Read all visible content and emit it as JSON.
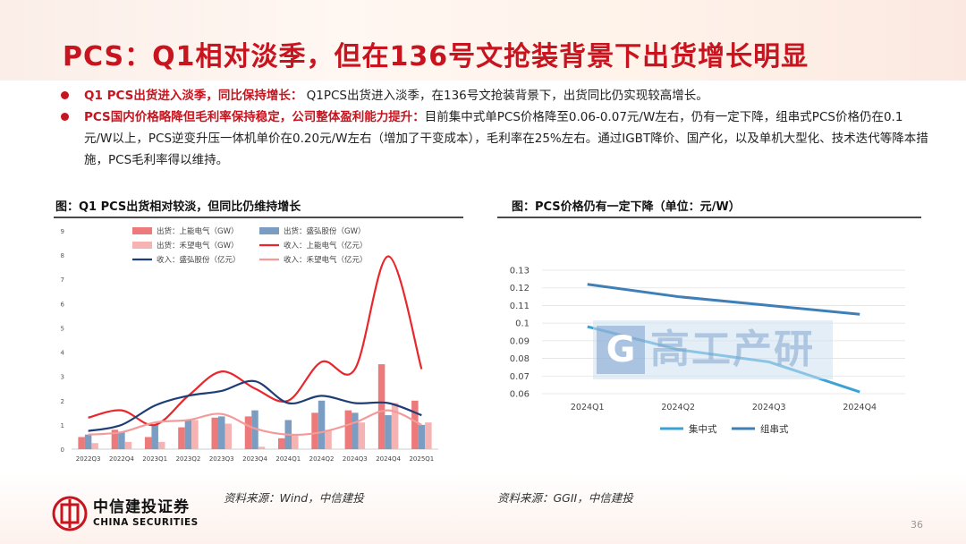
{
  "title": "PCS：Q1相对淡季，但在136号文抢装背景下出货增长明显",
  "bullets": [
    {
      "lead": "Q1 PCS出货进入淡季，同比保持增长：",
      "text": " Q1PCS出货进入淡季，在136号文抢装背景下，出货同比仍实现较高增长。"
    },
    {
      "lead": "PCS国内价格略降但毛利率保持稳定，公司整体盈利能力提升：",
      "text": "目前集中式单PCS价格降至0.06-0.07元/W左右，仍有一定下降，组串式PCS价格仍在0.1元/W以上，PCS逆变升压一体机单价在0.20元/W左右（增加了干变成本），毛利率在25%左右。通过IGBT降价、国产化，以及单机大型化、技术迭代等降本措施，PCS毛利率得以维持。"
    }
  ],
  "left_panel": {
    "title": "图：Q1 PCS出货相对较淡，但同比仍维持增长",
    "source": "资料来源：Wind，中信建投"
  },
  "right_panel": {
    "title": "图：PCS价格仍有一定下降（单位：元/W）",
    "source": "资料来源：GGII，中信建投"
  },
  "watermark": {
    "letter": "G",
    "text": "高工产研"
  },
  "logo": {
    "cn": "中信建投证券",
    "en": "CHINA SECURITIES"
  },
  "page_number": "36",
  "colors": {
    "brand_red": "#c8141e",
    "bar_red": "#ec7a7a",
    "bar_pink": "#f6b3b3",
    "bar_blue": "#7b9dc2",
    "line_red": "#e8262b",
    "line_navy": "#1f3e78",
    "line_pink": "#f39a9a",
    "price_central": "#3ba2d6",
    "price_string": "#3e7fb8"
  },
  "chart_data": [
    {
      "type": "bar",
      "title": "图：Q1 PCS出货相对较淡，但同比仍维持增长",
      "categories": [
        "2022Q3",
        "2022Q4",
        "2023Q1",
        "2023Q2",
        "2023Q3",
        "2023Q4",
        "2024Q1",
        "2024Q2",
        "2024Q3",
        "2024Q4",
        "2025Q1"
      ],
      "ylim": [
        0,
        9
      ],
      "yticks": [
        "0",
        "1",
        "2",
        "3",
        "4",
        "5",
        "6",
        "7",
        "8",
        "9"
      ],
      "bar_series": [
        {
          "name": "出货：上能电气（GW）",
          "color": "#ec7a7a",
          "values": [
            0.5,
            0.8,
            0.5,
            0.9,
            1.3,
            1.35,
            0.45,
            1.5,
            1.6,
            3.5,
            2.0
          ]
        },
        {
          "name": "出货：盛弘股份（GW）",
          "color": "#7b9dc2",
          "values": [
            0.6,
            0.7,
            1.0,
            1.2,
            1.35,
            1.6,
            1.2,
            2.0,
            1.5,
            1.4,
            1.0
          ]
        },
        {
          "name": "出货：禾望电气（GW）",
          "color": "#f6b3b3",
          "values": [
            0.25,
            0.3,
            0.3,
            1.2,
            1.05,
            0.1,
            0.55,
            0.8,
            1.1,
            1.9,
            1.1
          ]
        }
      ],
      "line_series": [
        {
          "name": "收入：上能电气（亿元）",
          "color": "#e8262b",
          "values": [
            1.3,
            1.6,
            1.0,
            2.2,
            3.2,
            2.5,
            2.0,
            3.6,
            3.3,
            7.95,
            3.3
          ]
        },
        {
          "name": "收入：盛弘股份（亿元）",
          "color": "#1f3e78",
          "values": [
            0.75,
            1.0,
            1.8,
            2.2,
            2.4,
            2.8,
            1.9,
            2.2,
            1.9,
            1.9,
            1.4
          ]
        },
        {
          "name": "收入：禾望电气（亿元）",
          "color": "#f39a9a",
          "values": [
            0.6,
            0.7,
            1.1,
            1.2,
            1.45,
            0.85,
            0.6,
            0.7,
            1.1,
            1.6,
            1.0
          ]
        }
      ]
    },
    {
      "type": "line",
      "title": "图：PCS价格仍有一定下降（单位：元/W）",
      "x": [
        "2024Q1",
        "2024Q2",
        "2024Q3",
        "2024Q4"
      ],
      "ylim": [
        0.06,
        0.13
      ],
      "yticks": [
        "0.06",
        "0.07",
        "0.08",
        "0.09",
        "0.1",
        "0.11",
        "0.12",
        "0.13"
      ],
      "series": [
        {
          "name": "集中式",
          "color": "#3ba2d6",
          "values": [
            0.098,
            0.085,
            0.078,
            0.061
          ]
        },
        {
          "name": "组串式",
          "color": "#3e7fb8",
          "values": [
            0.122,
            0.115,
            0.11,
            0.105
          ]
        }
      ]
    }
  ]
}
